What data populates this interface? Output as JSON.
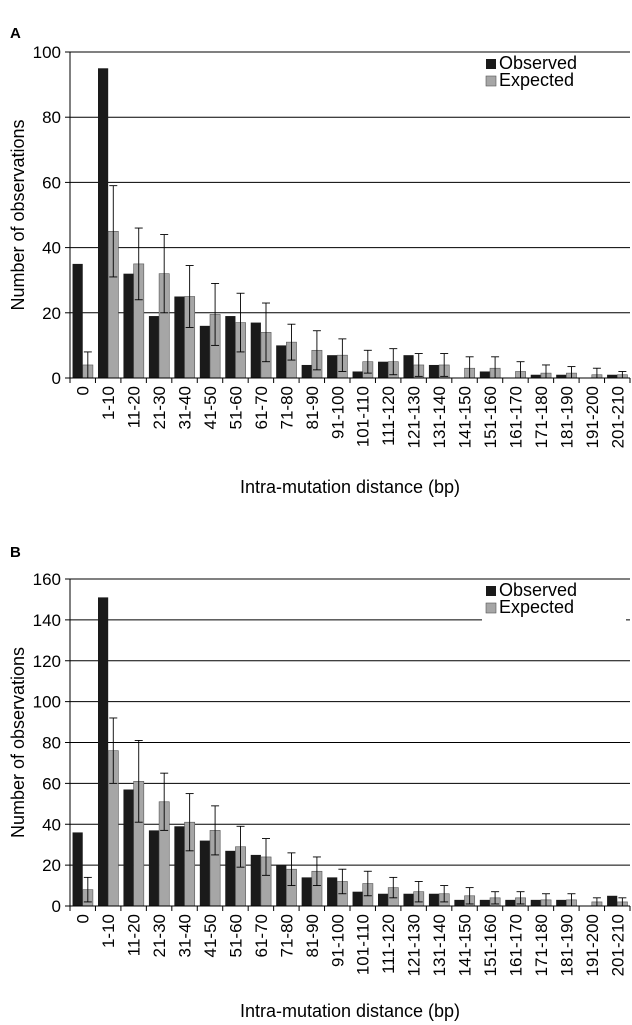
{
  "chart_data": [
    {
      "panel": "A",
      "type": "bar",
      "xlabel": "Intra-mutation distance (bp)",
      "ylabel": "Number of observations",
      "ylim": [
        0,
        100
      ],
      "yticks": [
        0,
        20,
        40,
        60,
        80,
        100
      ],
      "grid": true,
      "legend_position": "top-right",
      "categories": [
        "0",
        "1-10",
        "11-20",
        "21-30",
        "31-40",
        "41-50",
        "51-60",
        "61-70",
        "71-80",
        "81-90",
        "91-100",
        "101-110",
        "111-120",
        "121-130",
        "131-140",
        "141-150",
        "151-160",
        "161-170",
        "171-180",
        "181-190",
        "191-200",
        "201-210"
      ],
      "series": [
        {
          "name": "Observed",
          "color": "#1a1a1a",
          "values": [
            35,
            95,
            32,
            19,
            25,
            16,
            19,
            17,
            10,
            4,
            7,
            2,
            5,
            7,
            4,
            0,
            2,
            0,
            1,
            1,
            0,
            1
          ]
        },
        {
          "name": "Expected",
          "color": "#a6a6a6",
          "values": [
            4,
            45,
            35,
            32,
            25,
            19.5,
            17,
            14,
            11,
            8.5,
            7,
            5,
            5,
            4,
            4,
            3,
            3,
            2,
            1.5,
            1.5,
            1,
            1
          ],
          "errors": [
            4,
            14,
            11,
            12,
            9.5,
            9.5,
            9,
            9,
            5.5,
            6,
            5,
            3.5,
            4,
            3.5,
            3.5,
            3.5,
            3.5,
            3,
            2.5,
            2,
            2,
            1
          ]
        }
      ]
    },
    {
      "panel": "B",
      "type": "bar",
      "xlabel": "Intra-mutation distance (bp)",
      "ylabel": "Number of observations",
      "ylim": [
        0,
        160
      ],
      "yticks": [
        0,
        20,
        40,
        60,
        80,
        100,
        120,
        140,
        160
      ],
      "grid": true,
      "legend_position": "top-right",
      "categories": [
        "0",
        "1-10",
        "11-20",
        "21-30",
        "31-40",
        "41-50",
        "51-60",
        "61-70",
        "71-80",
        "81-90",
        "91-100",
        "101-110",
        "111-120",
        "121-130",
        "131-140",
        "141-150",
        "151-160",
        "161-170",
        "171-180",
        "181-190",
        "191-200",
        "201-210"
      ],
      "series": [
        {
          "name": "Observed",
          "color": "#1a1a1a",
          "values": [
            36,
            151,
            57,
            37,
            39,
            32,
            27,
            25,
            20,
            14,
            14,
            7,
            6,
            6,
            6,
            3,
            3,
            3,
            3,
            3,
            0,
            5
          ]
        },
        {
          "name": "Expected",
          "color": "#a6a6a6",
          "values": [
            8,
            76,
            61,
            51,
            41,
            37,
            29,
            24,
            18,
            17,
            12,
            11,
            9,
            7,
            6,
            5,
            4,
            4,
            3,
            3,
            2,
            2
          ],
          "errors": [
            6,
            16,
            20,
            14,
            14,
            12,
            10,
            9,
            8,
            7,
            6,
            6,
            5,
            5,
            4,
            4,
            3,
            3,
            3,
            3,
            2,
            2
          ]
        }
      ]
    }
  ]
}
